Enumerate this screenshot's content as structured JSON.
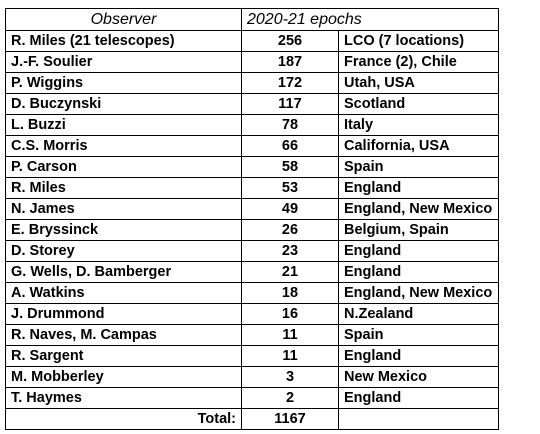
{
  "header": {
    "observer": "Observer",
    "epochs": "2020-21 epochs"
  },
  "rows": [
    {
      "observer": "R. Miles (21 telescopes)",
      "epochs": "256",
      "location": "LCO (7 locations)"
    },
    {
      "observer": "J.-F. Soulier",
      "epochs": "187",
      "location": "France (2), Chile"
    },
    {
      "observer": "P. Wiggins",
      "epochs": "172",
      "location": "Utah, USA"
    },
    {
      "observer": "D. Buczynski",
      "epochs": "117",
      "location": "Scotland"
    },
    {
      "observer": "L. Buzzi",
      "epochs": "78",
      "location": "Italy"
    },
    {
      "observer": "C.S. Morris",
      "epochs": "66",
      "location": "California, USA"
    },
    {
      "observer": "P. Carson",
      "epochs": "58",
      "location": "Spain"
    },
    {
      "observer": "R. Miles",
      "epochs": "53",
      "location": "England"
    },
    {
      "observer": "N. James",
      "epochs": "49",
      "location": "England, New Mexico"
    },
    {
      "observer": "E. Bryssinck",
      "epochs": "26",
      "location": "Belgium, Spain"
    },
    {
      "observer": "D. Storey",
      "epochs": "23",
      "location": "England"
    },
    {
      "observer": "G. Wells, D. Bamberger",
      "epochs": "21",
      "location": "England"
    },
    {
      "observer": "A. Watkins",
      "epochs": "18",
      "location": "England, New Mexico"
    },
    {
      "observer": "J. Drummond",
      "epochs": "16",
      "location": "N.Zealand"
    },
    {
      "observer": "R. Naves, M. Campas",
      "epochs": "11",
      "location": "Spain"
    },
    {
      "observer": "R. Sargent",
      "epochs": "11",
      "location": "England"
    },
    {
      "observer": "M. Mobberley",
      "epochs": "3",
      "location": "New Mexico"
    },
    {
      "observer": "T. Haymes",
      "epochs": "2",
      "location": "England"
    }
  ],
  "footer": {
    "label": "Total:",
    "value": "1167",
    "location": ""
  }
}
